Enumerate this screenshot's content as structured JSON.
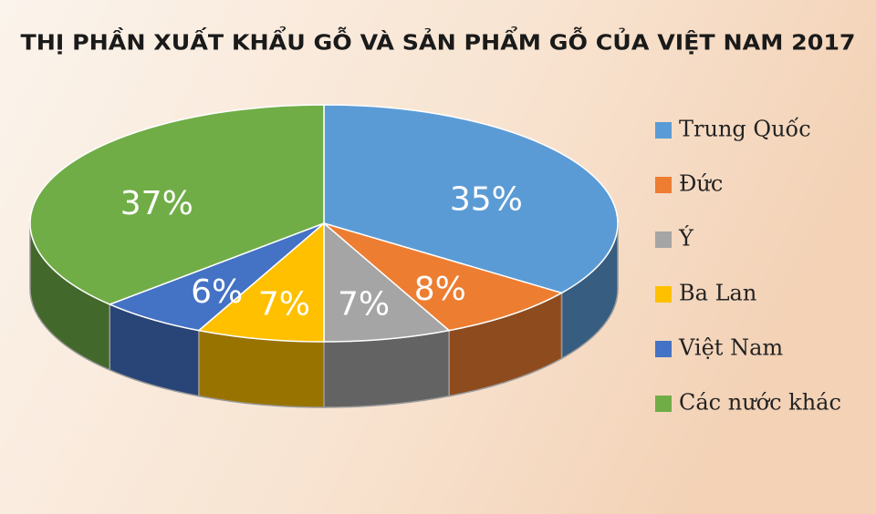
{
  "chart_data": {
    "type": "pie3d",
    "title": "THỊ PHẦN XUẤT KHẨU GỖ VÀ SẢN PHẨM GỖ CỦA VIỆT NAM 2017",
    "categories": [
      "Trung Quốc",
      "Đức",
      "Ý",
      "Ba Lan",
      "Việt Nam",
      "Các nước khác"
    ],
    "values": [
      35,
      8,
      7,
      7,
      6,
      37
    ],
    "value_labels": [
      "35%",
      "8%",
      "7%",
      "7%",
      "6%",
      "37%"
    ],
    "colors": [
      "#5b9bd5",
      "#ed7d31",
      "#a5a5a5",
      "#ffc000",
      "#4472c4",
      "#70ad47"
    ],
    "legend": "right"
  }
}
